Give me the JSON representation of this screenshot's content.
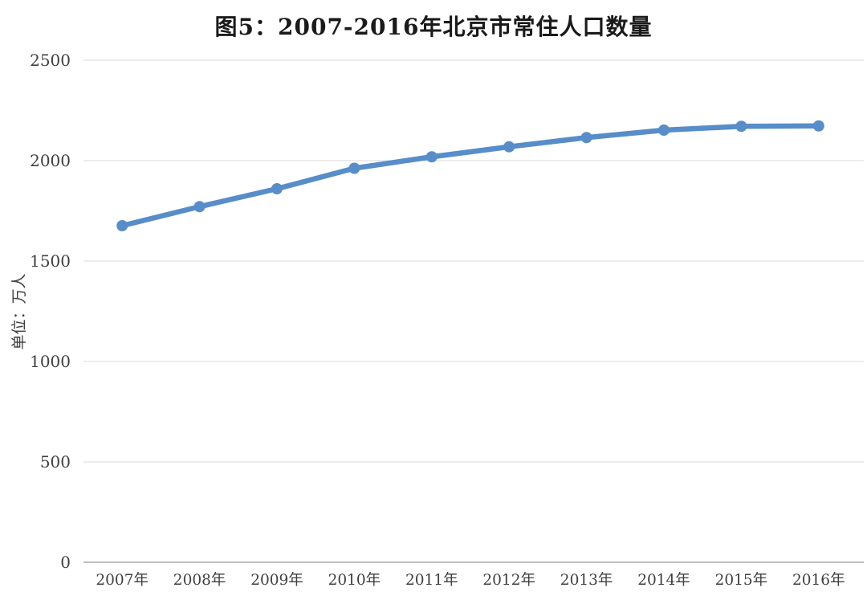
{
  "page": {
    "background_color": "#ffffff"
  },
  "chart_data": {
    "type": "line",
    "title": "图5：2007-2016年北京市常住人口数量",
    "ylabel": "单位：万人",
    "xlabel": "",
    "categories": [
      "2007年",
      "2008年",
      "2009年",
      "2010年",
      "2011年",
      "2012年",
      "2013年",
      "2014年",
      "2015年",
      "2016年"
    ],
    "values": [
      1676,
      1771,
      1860,
      1962,
      2019,
      2069,
      2115,
      2152,
      2171,
      2173
    ],
    "ylim": [
      0,
      2500
    ],
    "yticks": [
      0,
      500,
      1000,
      1500,
      2000,
      2500
    ],
    "grid": true,
    "legend_position": "none",
    "line_color": "#578dc9",
    "marker_color": "#578dc9",
    "grid_color": "#d9d9d9",
    "axis_line_color": "#ababab",
    "tick_label_color": "#404040",
    "title_color": "#1a1a1a"
  }
}
